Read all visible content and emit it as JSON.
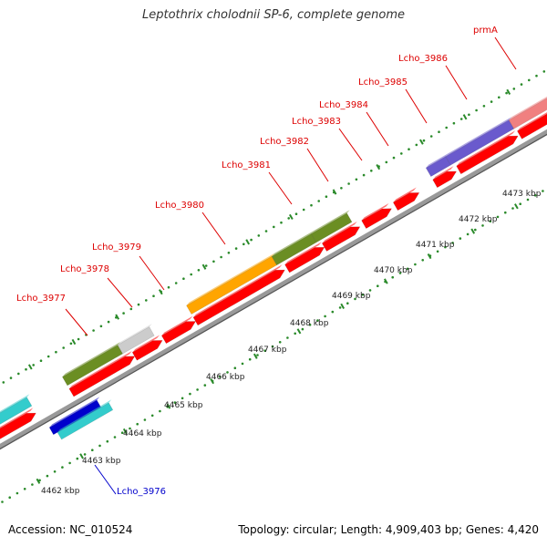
{
  "title": "Leptothrix cholodnii SP-6, complete genome",
  "footer": {
    "accession": "Accession: NC_010524",
    "summary": "Topology: circular; Length: 4,909,403 bp; Genes: 4,420"
  },
  "colors": {
    "backbone": "#999999",
    "tick": "#2a8a2a",
    "gene_label": "#dd0000",
    "highlight_label": "#0000cc",
    "cds": "#ff0000",
    "olive": "#6b8e23",
    "orange": "#ffa500",
    "gray": "#cccccc",
    "cyan": "#33cccc",
    "blue": "#0000cc",
    "purple": "#6a5acd",
    "pink": "#f08080"
  },
  "scale": {
    "unit": "kbp",
    "labels": [
      "4462 kbp",
      "4463 kbp",
      "4464 kbp",
      "4465 kbp",
      "4466 kbp",
      "4467 kbp",
      "4468 kbp",
      "4469 kbp",
      "4470 kbp",
      "4471 kbp",
      "4472 kbp",
      "4473 kbp"
    ]
  },
  "genes": [
    {
      "label": "Lcho_3976",
      "highlight": true
    },
    {
      "label": "Lcho_3977"
    },
    {
      "label": "Lcho_3978"
    },
    {
      "label": "Lcho_3979"
    },
    {
      "label": "Lcho_3980"
    },
    {
      "label": "Lcho_3981"
    },
    {
      "label": "Lcho_3982"
    },
    {
      "label": "Lcho_3983"
    },
    {
      "label": "Lcho_3984"
    },
    {
      "label": "Lcho_3985"
    },
    {
      "label": "Lcho_3986"
    },
    {
      "label": "prmA"
    }
  ]
}
